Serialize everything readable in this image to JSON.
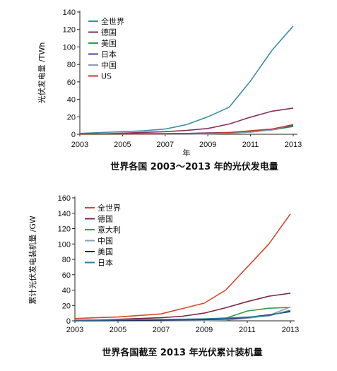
{
  "chart_data": [
    {
      "type": "line",
      "caption": "世界各国 2003～2013 年的光伏发电量",
      "xlabel": "年",
      "ylabel": "光伏发电量 /TWh",
      "x": [
        2003,
        2004,
        2005,
        2006,
        2007,
        2008,
        2009,
        2010,
        2011,
        2012,
        2013
      ],
      "xticks": [
        2003,
        2005,
        2007,
        2009,
        2011,
        2013
      ],
      "yticks": [
        0,
        20,
        40,
        60,
        80,
        100,
        120,
        140
      ],
      "xlim": [
        2003,
        2013
      ],
      "ylim": [
        0,
        140
      ],
      "legend_position": "top-left",
      "series": [
        {
          "name": "全世界",
          "color": "#3a8fa3",
          "values": [
            1,
            2,
            3,
            4,
            6,
            11,
            20,
            31,
            61,
            96,
            124
          ]
        },
        {
          "name": "德国",
          "color": "#8b2f5a",
          "values": [
            0.3,
            0.5,
            1.3,
            2.2,
            3,
            4.4,
            6.6,
            11.7,
            19.6,
            26.4,
            30
          ]
        },
        {
          "name": "美国",
          "color": "#2f9e4a",
          "values": [
            0.1,
            0.1,
            0.2,
            0.3,
            0.5,
            0.8,
            1,
            1.5,
            2.5,
            5,
            9
          ]
        },
        {
          "name": "日本",
          "color": "#5a3a9a",
          "values": [
            0.4,
            0.5,
            0.6,
            0.7,
            0.8,
            1,
            1.5,
            2,
            3,
            5,
            10
          ]
        },
        {
          "name": "中国",
          "color": "#8aa0b0",
          "values": [
            0.05,
            0.05,
            0.1,
            0.1,
            0.1,
            0.1,
            0.3,
            1,
            2.5,
            5,
            11
          ]
        },
        {
          "name": "US",
          "color": "#c0392b",
          "values": [
            0.3,
            0.3,
            0.4,
            0.5,
            0.6,
            0.9,
            1.2,
            2,
            4,
            6,
            11
          ]
        }
      ]
    },
    {
      "type": "line",
      "caption": "世界各国截至 2013 年光伏累计装机量",
      "xlabel": "",
      "ylabel": "累计光伏发电装机量 /GW",
      "x": [
        2003,
        2004,
        2005,
        2006,
        2007,
        2008,
        2009,
        2010,
        2011,
        2012,
        2013
      ],
      "xticks": [
        2003,
        2005,
        2007,
        2009,
        2011,
        2013
      ],
      "yticks": [
        0,
        20,
        40,
        60,
        80,
        100,
        120,
        140,
        160
      ],
      "xlim": [
        2003,
        2013
      ],
      "ylim": [
        0,
        160
      ],
      "legend_position": "top-left",
      "series": [
        {
          "name": "全世界",
          "color": "#d9452b",
          "values": [
            3,
            4,
            5,
            7,
            9,
            16,
            23,
            40,
            70,
            100,
            139
          ]
        },
        {
          "name": "德国",
          "color": "#7a2848",
          "values": [
            0.4,
            1,
            2,
            3,
            4,
            6,
            10,
            17,
            25,
            32,
            36
          ]
        },
        {
          "name": "意大利",
          "color": "#2f9e4a",
          "values": [
            0,
            0,
            0,
            0,
            0.1,
            0.5,
            1,
            3.5,
            12.8,
            16.4,
            17.6
          ]
        },
        {
          "name": "中国",
          "color": "#8aa0b0",
          "values": [
            0,
            0,
            0.1,
            0.1,
            0.1,
            0.1,
            0.3,
            0.8,
            3.3,
            7,
            18
          ]
        },
        {
          "name": "美国",
          "color": "#1f2a5a",
          "values": [
            0.3,
            0.3,
            0.5,
            0.6,
            0.8,
            1.2,
            1.6,
            2.5,
            4.4,
            7.7,
            12
          ]
        },
        {
          "name": "日本",
          "color": "#2f7ea8",
          "values": [
            0.9,
            1.1,
            1.4,
            1.7,
            1.9,
            2.1,
            2.6,
            3.6,
            4.9,
            6.6,
            13.6
          ]
        }
      ]
    }
  ]
}
